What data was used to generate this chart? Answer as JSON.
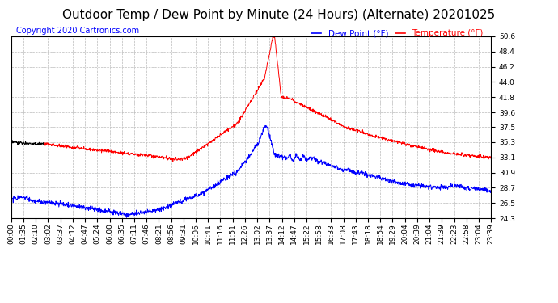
{
  "title": "Outdoor Temp / Dew Point by Minute (24 Hours) (Alternate) 20201025",
  "copyright": "Copyright 2020 Cartronics.com",
  "legend_dew": "Dew Point (°F)",
  "legend_temp": "Temperature (°F)",
  "bg_color": "#ffffff",
  "plot_bg_color": "#ffffff",
  "grid_color": "#bbbbbb",
  "temp_color": "#ff0000",
  "dew_color": "#0000ff",
  "black_color": "#000000",
  "ymin": 24.3,
  "ymax": 50.6,
  "yticks": [
    24.3,
    26.5,
    28.7,
    30.9,
    33.1,
    35.3,
    37.5,
    39.6,
    41.8,
    44.0,
    46.2,
    48.4,
    50.6
  ],
  "xtick_labels": [
    "00:00",
    "01:35",
    "02:10",
    "03:02",
    "03:37",
    "04:12",
    "04:47",
    "05:24",
    "06:00",
    "06:35",
    "07:11",
    "07:46",
    "08:21",
    "08:56",
    "09:31",
    "10:06",
    "10:41",
    "11:16",
    "11:51",
    "12:26",
    "13:02",
    "13:37",
    "14:12",
    "14:47",
    "15:22",
    "15:58",
    "16:33",
    "17:08",
    "17:43",
    "18:18",
    "18:54",
    "19:29",
    "20:04",
    "20:39",
    "21:04",
    "21:39",
    "22:23",
    "22:58",
    "23:04",
    "23:39"
  ],
  "title_fontsize": 11,
  "tick_fontsize": 6.5,
  "copyright_fontsize": 7,
  "legend_fontsize": 7.5
}
